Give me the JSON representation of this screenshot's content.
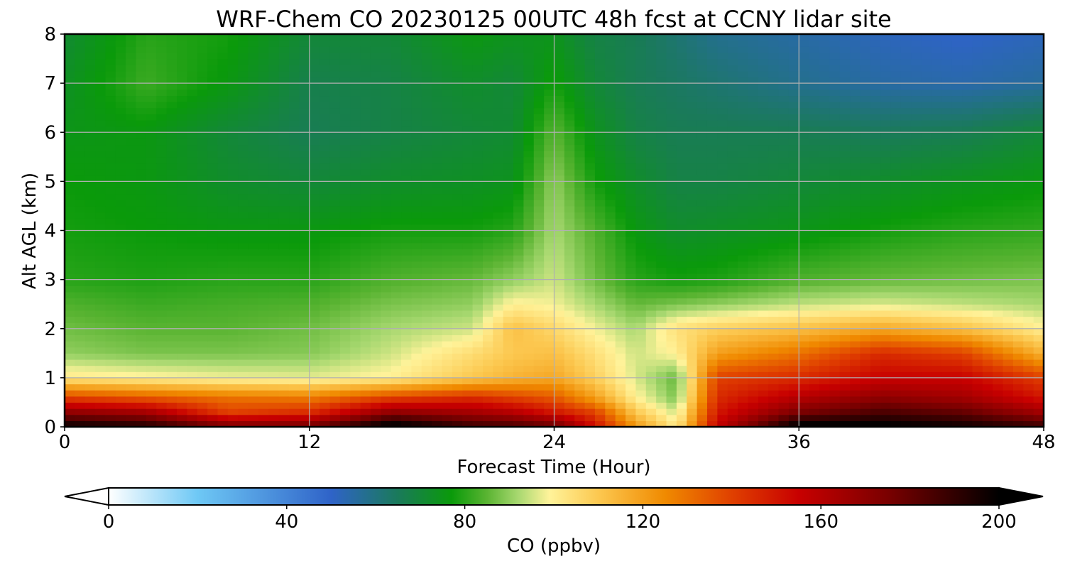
{
  "chart_data": {
    "type": "heatmap",
    "title": "WRF-Chem CO  20230125 00UTC 48h fcst at CCNY lidar site",
    "xlabel": "Forecast Time (Hour)",
    "ylabel": "Alt AGL (km)",
    "xlim": [
      0,
      48
    ],
    "ylim": [
      0,
      8
    ],
    "x_ticks": [
      "0",
      "12",
      "24",
      "36",
      "48"
    ],
    "y_ticks": [
      "0",
      "1",
      "2",
      "3",
      "4",
      "5",
      "6",
      "7",
      "8"
    ],
    "grid": true,
    "colorbar": {
      "label": "CO  (ppbv)",
      "min": 0,
      "max": 200,
      "ticks": [
        "0",
        "40",
        "80",
        "120",
        "160",
        "200"
      ],
      "extend": "both",
      "stops": [
        {
          "value": 0,
          "color": "#ffffff"
        },
        {
          "value": 20,
          "color": "#6ec8f5"
        },
        {
          "value": 50,
          "color": "#2f63c8"
        },
        {
          "value": 65,
          "color": "#1a7a5a"
        },
        {
          "value": 77,
          "color": "#0a9a0a"
        },
        {
          "value": 85,
          "color": "#5ab432"
        },
        {
          "value": 92,
          "color": "#a8d870"
        },
        {
          "value": 99,
          "color": "#fff39a"
        },
        {
          "value": 110,
          "color": "#fcc850"
        },
        {
          "value": 125,
          "color": "#f08a00"
        },
        {
          "value": 140,
          "color": "#e04000"
        },
        {
          "value": 155,
          "color": "#c80000"
        },
        {
          "value": 175,
          "color": "#7a0000"
        },
        {
          "value": 200,
          "color": "#000000"
        }
      ]
    },
    "x_hours": [
      0,
      4,
      8,
      12,
      16,
      20,
      22,
      24,
      26,
      28,
      30,
      32,
      36,
      40,
      44,
      48
    ],
    "z_levels_km": [
      0.05,
      0.3,
      0.6,
      1.0,
      1.5,
      2.0,
      2.5,
      3.0,
      4.0,
      5.0,
      6.0,
      7.0,
      8.0
    ],
    "co_ppbv": [
      [
        195,
        190,
        170,
        172,
        200,
        185,
        182,
        175,
        150,
        120,
        100,
        155,
        200,
        200,
        195,
        185
      ],
      [
        170,
        165,
        140,
        145,
        170,
        165,
        160,
        150,
        140,
        110,
        95,
        150,
        175,
        185,
        180,
        165
      ],
      [
        140,
        135,
        130,
        128,
        140,
        145,
        140,
        135,
        120,
        100,
        88,
        145,
        160,
        170,
        165,
        150
      ],
      [
        102,
        100,
        98,
        97,
        100,
        110,
        115,
        118,
        108,
        96,
        86,
        140,
        145,
        155,
        155,
        140
      ],
      [
        90,
        88,
        88,
        89,
        95,
        105,
        110,
        112,
        104,
        95,
        100,
        120,
        130,
        145,
        140,
        115
      ],
      [
        87,
        85,
        85,
        87,
        92,
        95,
        112,
        106,
        98,
        92,
        104,
        108,
        112,
        118,
        112,
        100
      ],
      [
        84,
        82,
        83,
        84,
        88,
        90,
        100,
        98,
        92,
        86,
        88,
        90,
        94,
        96,
        94,
        92
      ],
      [
        80,
        79,
        80,
        80,
        84,
        86,
        90,
        95,
        87,
        80,
        78,
        79,
        84,
        86,
        87,
        88
      ],
      [
        78,
        77,
        76,
        76,
        78,
        78,
        80,
        92,
        84,
        76,
        72,
        73,
        75,
        78,
        80,
        81
      ],
      [
        77,
        76,
        72,
        70,
        72,
        73,
        74,
        90,
        78,
        72,
        68,
        68,
        70,
        72,
        74,
        76
      ],
      [
        75,
        76,
        70,
        66,
        68,
        70,
        71,
        85,
        74,
        68,
        66,
        66,
        66,
        65,
        66,
        70
      ],
      [
        73,
        82,
        76,
        67,
        68,
        72,
        70,
        78,
        70,
        66,
        64,
        62,
        58,
        55,
        54,
        56
      ],
      [
        71,
        80,
        78,
        70,
        70,
        76,
        74,
        74,
        68,
        66,
        62,
        58,
        55,
        52,
        50,
        52
      ]
    ]
  }
}
